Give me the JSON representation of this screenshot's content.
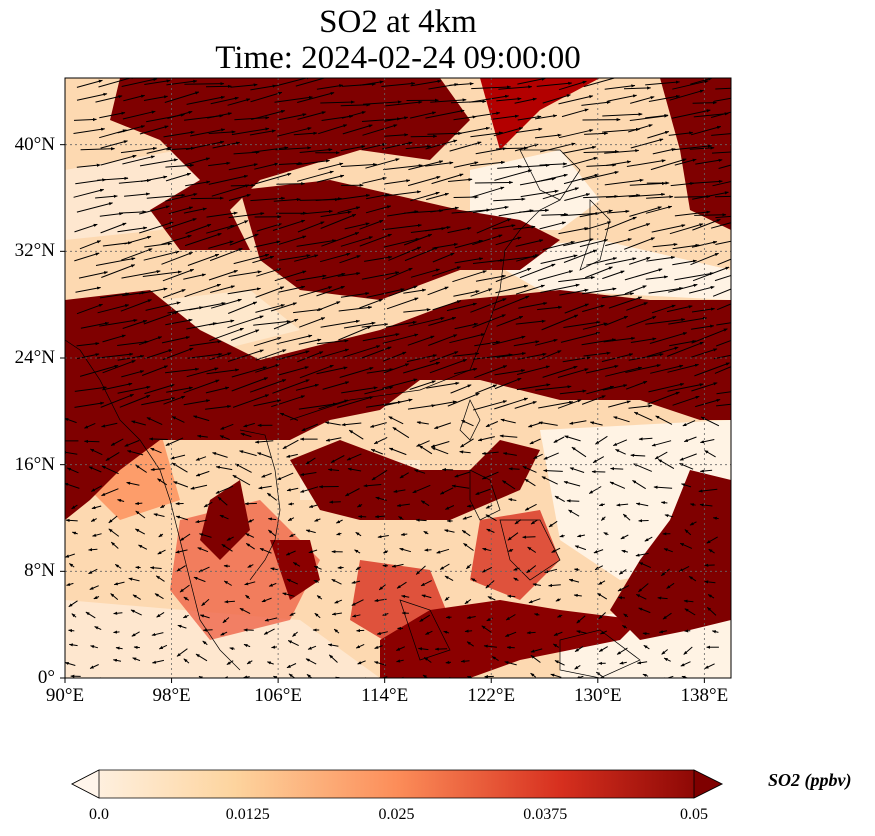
{
  "title": {
    "line1": "SO2 at 4km",
    "line2": "Time: 2024-02-24 09:00:00"
  },
  "map": {
    "lon_range": [
      90,
      140
    ],
    "lat_range": [
      0,
      45
    ],
    "lon_ticks": [
      "90°E",
      "98°E",
      "106°E",
      "114°E",
      "122°E",
      "130°E",
      "138°E"
    ],
    "lat_ticks": [
      "0°",
      "8°N",
      "16°N",
      "24°N",
      "32°N",
      "40°N"
    ],
    "gridlines": true,
    "field": "SO2 concentration with wind vectors",
    "high_so2_bands": [
      {
        "region": "northern China / North China Plain",
        "level": "high"
      },
      {
        "region": "central China to East China Sea",
        "level": "high"
      },
      {
        "region": "southern China through Taiwan to western Pacific",
        "level": "high"
      },
      {
        "region": "South China Sea / Philippines arc",
        "level": "high"
      },
      {
        "region": "equatorial western Pacific east of Mindanao",
        "level": "high"
      }
    ]
  },
  "colorbar": {
    "label": "SO2 (ppbv)",
    "ticks": [
      "0.0",
      "0.0125",
      "0.025",
      "0.0375",
      "0.05"
    ],
    "range": [
      0.0,
      0.05
    ],
    "extend": "both",
    "colors": [
      "#fff5eb",
      "#fdd49e",
      "#fc8d59",
      "#d7301f",
      "#7f0000"
    ]
  }
}
